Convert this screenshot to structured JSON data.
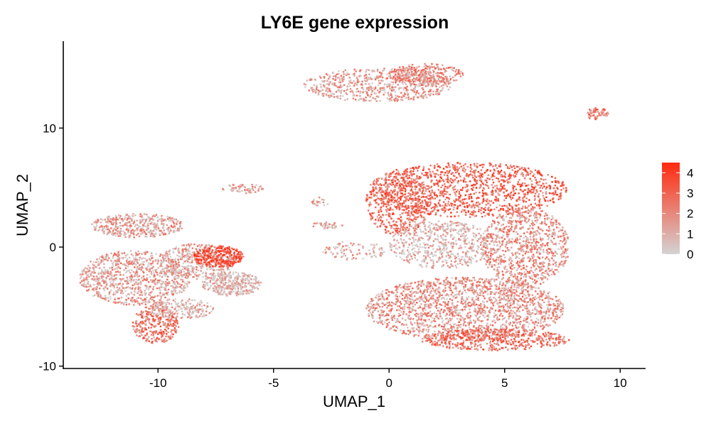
{
  "chart_data": {
    "type": "scatter",
    "title": "LY6E gene expression",
    "xlabel": "UMAP_1",
    "ylabel": "UMAP_2",
    "xlim": [
      -14.1,
      11.1
    ],
    "ylim": [
      -10.2,
      17.3
    ],
    "x_ticks": [
      -10,
      -5,
      0,
      5,
      10
    ],
    "y_ticks": [
      -10,
      0,
      10
    ],
    "grid": false,
    "legend": {
      "placement": "right",
      "type": "colorbar",
      "ticks": [
        0,
        1,
        2,
        3,
        4
      ],
      "min": 0,
      "max": 4.5,
      "low_color": "#d3d3d3",
      "high_color": "#ff2a0f"
    },
    "clusters": [
      {
        "cx": -10.9,
        "cy": 1.8,
        "rx": 2.0,
        "ry": 1.0,
        "density": 420,
        "mean_expr": 1.3
      },
      {
        "cx": -11.0,
        "cy": -2.6,
        "rx": 2.4,
        "ry": 2.3,
        "density": 900,
        "mean_expr": 1.4
      },
      {
        "cx": -10.1,
        "cy": -6.5,
        "rx": 1.0,
        "ry": 1.6,
        "density": 300,
        "mean_expr": 2.4
      },
      {
        "cx": -8.3,
        "cy": -1.2,
        "rx": 1.6,
        "ry": 1.5,
        "density": 420,
        "mean_expr": 1.1
      },
      {
        "cx": -7.4,
        "cy": -0.8,
        "rx": 1.1,
        "ry": 0.9,
        "density": 300,
        "mean_expr": 3.6
      },
      {
        "cx": -6.8,
        "cy": -3.1,
        "rx": 1.3,
        "ry": 1.0,
        "density": 380,
        "mean_expr": 0.6
      },
      {
        "cx": -9.0,
        "cy": -5.2,
        "rx": 1.4,
        "ry": 0.9,
        "density": 220,
        "mean_expr": 0.8
      },
      {
        "cx": -6.3,
        "cy": 4.9,
        "rx": 0.9,
        "ry": 0.4,
        "density": 60,
        "mean_expr": 1.4
      },
      {
        "cx": -0.5,
        "cy": 13.6,
        "rx": 3.2,
        "ry": 1.4,
        "density": 650,
        "mean_expr": 1.4
      },
      {
        "cx": 1.6,
        "cy": 14.5,
        "rx": 1.6,
        "ry": 0.9,
        "density": 280,
        "mean_expr": 1.9
      },
      {
        "cx": 9.0,
        "cy": 11.2,
        "rx": 0.5,
        "ry": 0.5,
        "density": 60,
        "mean_expr": 2.2
      },
      {
        "cx": 3.4,
        "cy": 4.8,
        "rx": 4.3,
        "ry": 2.3,
        "density": 1200,
        "mean_expr": 2.9
      },
      {
        "cx": 0.4,
        "cy": 3.7,
        "rx": 1.4,
        "ry": 2.8,
        "density": 500,
        "mean_expr": 2.7
      },
      {
        "cx": 2.3,
        "cy": 0.2,
        "rx": 2.3,
        "ry": 2.0,
        "density": 600,
        "mean_expr": 0.7
      },
      {
        "cx": 5.9,
        "cy": 0.0,
        "rx": 1.9,
        "ry": 3.3,
        "density": 900,
        "mean_expr": 1.7
      },
      {
        "cx": 3.3,
        "cy": -5.2,
        "rx": 4.3,
        "ry": 2.7,
        "density": 1800,
        "mean_expr": 1.6
      },
      {
        "cx": 4.6,
        "cy": -7.8,
        "rx": 3.2,
        "ry": 0.9,
        "density": 500,
        "mean_expr": 2.6
      },
      {
        "cx": -1.5,
        "cy": -0.3,
        "rx": 1.4,
        "ry": 0.8,
        "density": 90,
        "mean_expr": 1.4
      },
      {
        "cx": -2.7,
        "cy": 1.8,
        "rx": 0.7,
        "ry": 0.3,
        "density": 40,
        "mean_expr": 1.0
      },
      {
        "cx": -3.0,
        "cy": 3.8,
        "rx": 0.4,
        "ry": 0.4,
        "density": 20,
        "mean_expr": 1.5
      }
    ]
  }
}
